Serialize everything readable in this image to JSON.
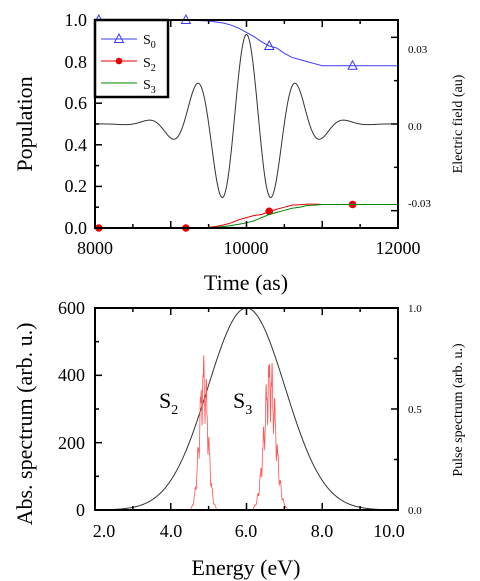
{
  "chart_data": [
    {
      "type": "line",
      "panel": "top",
      "xlabel": "Time (as)",
      "ylabel": "Population",
      "y2label": "Electric field (au)",
      "xlim": [
        8000,
        12000
      ],
      "ylim": [
        0.0,
        1.0
      ],
      "y2lim": [
        -0.036,
        0.036
      ],
      "xticks": [
        "8000",
        "10000",
        "12000"
      ],
      "yticks": [
        "0.0",
        "0.2",
        "0.4",
        "0.6",
        "0.8",
        "1.0"
      ],
      "y2ticks": [
        "-0.03",
        "0.0",
        "0.03"
      ],
      "legend_position": "top-left",
      "colors": {
        "S0": "#3b3bff",
        "S2": "#e60000",
        "S3": "#008800",
        "field": "#333333"
      },
      "series": [
        {
          "name": "S0",
          "sub": "0",
          "marker": "triangle",
          "x": [
            8000,
            8500,
            9000,
            9200,
            9500,
            9700,
            9800,
            9900,
            10000,
            10100,
            10200,
            10300,
            10400,
            10500,
            10600,
            10700,
            10800,
            10900,
            11000,
            11100,
            11200,
            11400,
            11600,
            12000
          ],
          "y": [
            1.0,
            1.0,
            1.0,
            1.0,
            0.995,
            0.985,
            0.975,
            0.96,
            0.94,
            0.92,
            0.895,
            0.875,
            0.865,
            0.84,
            0.82,
            0.81,
            0.8,
            0.79,
            0.78,
            0.78,
            0.78,
            0.78,
            0.78,
            0.78
          ],
          "marker_x": [
            8050,
            9200,
            10300,
            11400
          ]
        },
        {
          "name": "S2",
          "sub": "2",
          "marker": "circle",
          "x": [
            8000,
            9000,
            9400,
            9500,
            9600,
            9700,
            9800,
            9900,
            10000,
            10100,
            10200,
            10300,
            10400,
            10500,
            10600,
            10700,
            10800,
            10900,
            11000,
            11200,
            11400,
            11600,
            12000
          ],
          "y": [
            0.0,
            0.0,
            0.0,
            0.003,
            0.008,
            0.015,
            0.025,
            0.04,
            0.05,
            0.06,
            0.065,
            0.08,
            0.09,
            0.1,
            0.11,
            0.112,
            0.115,
            0.115,
            0.113,
            0.113,
            0.113,
            0.113,
            0.113
          ],
          "marker_x": [
            8050,
            9200,
            10300,
            11400
          ]
        },
        {
          "name": "S3",
          "sub": "3",
          "marker": "none",
          "x": [
            8000,
            9000,
            9400,
            9500,
            9600,
            9700,
            9800,
            9900,
            10000,
            10100,
            10200,
            10300,
            10400,
            10500,
            10600,
            10700,
            10800,
            10900,
            11000,
            11200,
            11400,
            11600,
            12000
          ],
          "y": [
            0.0,
            0.0,
            0.0,
            0.002,
            0.004,
            0.007,
            0.012,
            0.018,
            0.025,
            0.035,
            0.05,
            0.065,
            0.075,
            0.085,
            0.095,
            0.1,
            0.108,
            0.11,
            0.113,
            0.113,
            0.113,
            0.113,
            0.113
          ]
        },
        {
          "name": "Electric field",
          "axis": "right",
          "function": "gaussian_cosine",
          "amplitude": 0.031,
          "center": 10000,
          "sigma": 520,
          "period": 665,
          "x_range": [
            8000,
            12000
          ]
        }
      ]
    },
    {
      "type": "line",
      "panel": "bottom",
      "xlabel": "Energy (eV)",
      "ylabel": "Abs. spectrum (arb. u.)",
      "y2label": "Pulse spectrum (arb. u.)",
      "xlim": [
        2.0,
        10.0
      ],
      "ylim": [
        0,
        600
      ],
      "y2lim": [
        0.0,
        1.0
      ],
      "xticks": [
        "2.0",
        "4.0",
        "6.0",
        "8.0",
        "10.0"
      ],
      "yticks": [
        "0",
        "200",
        "400",
        "600"
      ],
      "y2ticks": [
        "0.0",
        "0.5",
        "1.0"
      ],
      "annotations": [
        {
          "text": "S",
          "sub": "2",
          "x": 3.3,
          "y": 320
        },
        {
          "text": "S",
          "sub": "3",
          "x": 5.35,
          "y": 320
        }
      ],
      "colors": {
        "abs": "#ff5555",
        "pulse": "#333333"
      },
      "series": [
        {
          "name": "Pulse spectrum",
          "axis": "right",
          "function": "gaussian",
          "center": 6.0,
          "sigma": 1.02,
          "peak": 1.0
        },
        {
          "name": "Abs. spectrum",
          "axis": "left",
          "function": "spiky_bands",
          "bands": [
            {
              "center": 4.87,
              "width": 0.24,
              "peak": 470
            },
            {
              "center": 6.62,
              "width": 0.32,
              "peak": 470
            }
          ]
        }
      ]
    }
  ]
}
